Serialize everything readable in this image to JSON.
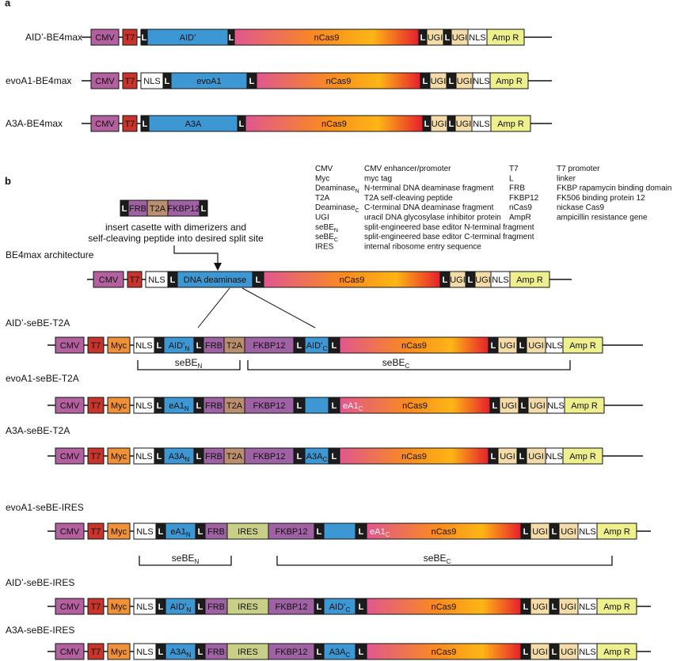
{
  "panel_a_label": "a",
  "panel_b_label": "b",
  "colors": {
    "CMV": "#b2609e",
    "T7": "#c8342c",
    "Myc": "#ee9138",
    "L": "#1c1c1c",
    "NLS": "#ffffff",
    "deaminase": "#3d97d3",
    "FRB": "#9e62a3",
    "T2A": "#b98f6f",
    "FKBP12": "#9e62a3",
    "IRES": "#c9cf86",
    "UGI": "#f4dca8",
    "AmpR": "#eef08d",
    "nCas9_gradient": [
      "#e0578e",
      "#f98a20",
      "#fdb515",
      "#e61f2d"
    ]
  },
  "constructs": [
    {
      "name": "AID’-BE4max",
      "segments": [
        {
          "type": "CMV",
          "text": "CMV"
        },
        {
          "type": "T7",
          "text": "T7"
        },
        {
          "type": "L",
          "text": "L"
        },
        {
          "type": "deaminase",
          "text": "AID’"
        },
        {
          "type": "L",
          "text": "L"
        },
        {
          "type": "nCas9",
          "text": "nCas9"
        },
        {
          "type": "L",
          "text": "L"
        },
        {
          "type": "UGI",
          "text": "UGI"
        },
        {
          "type": "L",
          "text": "L"
        },
        {
          "type": "UGI",
          "text": "UGI"
        },
        {
          "type": "NLS",
          "text": "NLS"
        },
        {
          "type": "AmpR",
          "text": "Amp R"
        }
      ]
    },
    {
      "name": "evoA1-BE4max",
      "segments": [
        {
          "type": "CMV",
          "text": "CMV"
        },
        {
          "type": "T7",
          "text": "T7"
        },
        {
          "type": "NLS",
          "text": "NLS"
        },
        {
          "type": "L",
          "text": "L"
        },
        {
          "type": "deaminase",
          "text": "evoA1"
        },
        {
          "type": "L",
          "text": "L"
        },
        {
          "type": "nCas9",
          "text": "nCas9"
        },
        {
          "type": "L",
          "text": "L"
        },
        {
          "type": "UGI",
          "text": "UGI"
        },
        {
          "type": "L",
          "text": "L"
        },
        {
          "type": "UGI",
          "text": "UGI"
        },
        {
          "type": "NLS",
          "text": "NLS"
        },
        {
          "type": "AmpR",
          "text": "Amp R"
        }
      ]
    },
    {
      "name": "A3A-BE4max",
      "segments": [
        {
          "type": "CMV",
          "text": "CMV"
        },
        {
          "type": "T7",
          "text": "T7"
        },
        {
          "type": "L",
          "text": "L"
        },
        {
          "type": "deaminase",
          "text": "A3A"
        },
        {
          "type": "L",
          "text": "L"
        },
        {
          "type": "nCas9",
          "text": "nCas9"
        },
        {
          "type": "L",
          "text": "L"
        },
        {
          "type": "UGI",
          "text": "UGI"
        },
        {
          "type": "L",
          "text": "L"
        },
        {
          "type": "UGI",
          "text": "UGI"
        },
        {
          "type": "NLS",
          "text": "NLS"
        },
        {
          "type": "AmpR",
          "text": "Amp R"
        }
      ]
    },
    {
      "name": "",
      "segments": [
        {
          "type": "L",
          "text": "L"
        },
        {
          "type": "FRB",
          "text": "FRB"
        },
        {
          "type": "T2A",
          "text": "T2A"
        },
        {
          "type": "FKBP12",
          "text": "FKBP12"
        },
        {
          "type": "L",
          "text": "L"
        }
      ]
    },
    {
      "name": "BE4max architecture",
      "segments": [
        {
          "type": "CMV",
          "text": "CMV"
        },
        {
          "type": "T7",
          "text": "T7"
        },
        {
          "type": "NLS",
          "text": "NLS"
        },
        {
          "type": "L",
          "text": "L"
        },
        {
          "type": "deaminase",
          "text": "DNA deaminase"
        },
        {
          "type": "L",
          "text": "L"
        },
        {
          "type": "nCas9",
          "text": "nCas9"
        },
        {
          "type": "L",
          "text": "L"
        },
        {
          "type": "UGI",
          "text": "UGI"
        },
        {
          "type": "L",
          "text": "L"
        },
        {
          "type": "UGI",
          "text": "UGI"
        },
        {
          "type": "NLS",
          "text": "NLS"
        },
        {
          "type": "AmpR",
          "text": "Amp R"
        }
      ]
    },
    {
      "name": "AID’-seBE-T2A",
      "segments": [
        {
          "type": "CMV",
          "text": "CMV"
        },
        {
          "type": "T7",
          "text": "T7"
        },
        {
          "type": "Myc",
          "text": "Myc"
        },
        {
          "type": "NLS",
          "text": "NLS"
        },
        {
          "type": "L",
          "text": "L"
        },
        {
          "type": "deaminase",
          "text": "AID’",
          "sub": "N"
        },
        {
          "type": "L",
          "text": "L"
        },
        {
          "type": "FRB",
          "text": "FRB"
        },
        {
          "type": "T2A",
          "text": "T2A"
        },
        {
          "type": "FKBP12",
          "text": "FKBP12"
        },
        {
          "type": "L",
          "text": "L"
        },
        {
          "type": "deaminase",
          "text": "AID’",
          "sub": "C"
        },
        {
          "type": "L",
          "text": "L"
        },
        {
          "type": "nCas9",
          "text": "nCas9"
        },
        {
          "type": "L",
          "text": "L"
        },
        {
          "type": "UGI",
          "text": "UGI"
        },
        {
          "type": "L",
          "text": "L"
        },
        {
          "type": "UGI",
          "text": "UGI"
        },
        {
          "type": "NLS",
          "text": "NLS"
        },
        {
          "type": "AmpR",
          "text": "Amp R"
        }
      ]
    },
    {
      "name": "evoA1-seBE-T2A",
      "segments": [
        {
          "type": "CMV",
          "text": "CMV"
        },
        {
          "type": "T7",
          "text": "T7"
        },
        {
          "type": "Myc",
          "text": "Myc"
        },
        {
          "type": "NLS",
          "text": "NLS"
        },
        {
          "type": "L",
          "text": "L"
        },
        {
          "type": "deaminase",
          "text": "eA1",
          "sub": "N"
        },
        {
          "type": "L",
          "text": "L"
        },
        {
          "type": "FRB",
          "text": "FRB"
        },
        {
          "type": "T2A",
          "text": "T2A"
        },
        {
          "type": "FKBP12",
          "text": "FKBP12"
        },
        {
          "type": "L",
          "text": "L"
        },
        {
          "type": "deaminase",
          "text": ""
        },
        {
          "type": "L",
          "text": "L"
        },
        {
          "type": "nCas9",
          "text": "nCas9",
          "pre": "eA1",
          "presub": "C"
        },
        {
          "type": "L",
          "text": "L"
        },
        {
          "type": "UGI",
          "text": "UGI"
        },
        {
          "type": "L",
          "text": "L"
        },
        {
          "type": "UGI",
          "text": "UGI"
        },
        {
          "type": "NLS",
          "text": "NLS"
        },
        {
          "type": "AmpR",
          "text": "Amp R"
        }
      ]
    },
    {
      "name": "A3A-seBE-T2A",
      "segments": [
        {
          "type": "CMV",
          "text": "CMV"
        },
        {
          "type": "T7",
          "text": "T7"
        },
        {
          "type": "Myc",
          "text": "Myc"
        },
        {
          "type": "NLS",
          "text": "NLS"
        },
        {
          "type": "L",
          "text": "L"
        },
        {
          "type": "deaminase",
          "text": "A3A",
          "sub": "N"
        },
        {
          "type": "L",
          "text": "L"
        },
        {
          "type": "FRB",
          "text": "FRB"
        },
        {
          "type": "T2A",
          "text": "T2A"
        },
        {
          "type": "FKBP12",
          "text": "FKBP12"
        },
        {
          "type": "L",
          "text": "L"
        },
        {
          "type": "deaminase",
          "text": "A3A",
          "sub": "C"
        },
        {
          "type": "L",
          "text": "L"
        },
        {
          "type": "nCas9",
          "text": "nCas9"
        },
        {
          "type": "L",
          "text": "L"
        },
        {
          "type": "UGI",
          "text": "UGI"
        },
        {
          "type": "L",
          "text": "L"
        },
        {
          "type": "UGI",
          "text": "UGI"
        },
        {
          "type": "NLS",
          "text": "NLS"
        },
        {
          "type": "AmpR",
          "text": "Amp R"
        }
      ]
    },
    {
      "name": "evoA1-seBE-IRES",
      "segments": [
        {
          "type": "CMV",
          "text": "CMV"
        },
        {
          "type": "T7",
          "text": "T7"
        },
        {
          "type": "Myc",
          "text": "Myc"
        },
        {
          "type": "NLS",
          "text": "NLS"
        },
        {
          "type": "L",
          "text": "L"
        },
        {
          "type": "deaminase",
          "text": "eA1",
          "sub": "N"
        },
        {
          "type": "L",
          "text": "L"
        },
        {
          "type": "FRB",
          "text": "FRB"
        },
        {
          "type": "IRES",
          "text": "IRES"
        },
        {
          "type": "FKBP12",
          "text": "FKBP12"
        },
        {
          "type": "L",
          "text": "L"
        },
        {
          "type": "deaminase",
          "text": ""
        },
        {
          "type": "L",
          "text": "L"
        },
        {
          "type": "nCas9",
          "text": "nCas9",
          "pre": "eA1",
          "presub": "C"
        },
        {
          "type": "L",
          "text": "L"
        },
        {
          "type": "UGI",
          "text": "UGI"
        },
        {
          "type": "L",
          "text": "L"
        },
        {
          "type": "UGI",
          "text": "UGI"
        },
        {
          "type": "NLS",
          "text": "NLS"
        },
        {
          "type": "AmpR",
          "text": "Amp R"
        }
      ]
    },
    {
      "name": "AID’-seBE-IRES",
      "segments": [
        {
          "type": "CMV",
          "text": "CMV"
        },
        {
          "type": "T7",
          "text": "T7"
        },
        {
          "type": "Myc",
          "text": "Myc"
        },
        {
          "type": "NLS",
          "text": "NLS"
        },
        {
          "type": "L",
          "text": "L"
        },
        {
          "type": "deaminase",
          "text": "AID’",
          "sub": "N"
        },
        {
          "type": "L",
          "text": "L"
        },
        {
          "type": "FRB",
          "text": "FRB"
        },
        {
          "type": "IRES",
          "text": "IRES"
        },
        {
          "type": "FKBP12",
          "text": "FKBP12"
        },
        {
          "type": "L",
          "text": "L"
        },
        {
          "type": "deaminase",
          "text": "AID’",
          "sub": "C"
        },
        {
          "type": "L",
          "text": "L"
        },
        {
          "type": "nCas9",
          "text": "nCas9"
        },
        {
          "type": "L",
          "text": "L"
        },
        {
          "type": "UGI",
          "text": "UGI"
        },
        {
          "type": "L",
          "text": "L"
        },
        {
          "type": "UGI",
          "text": "UGI"
        },
        {
          "type": "NLS",
          "text": "NLS"
        },
        {
          "type": "AmpR",
          "text": "Amp R"
        }
      ]
    },
    {
      "name": "A3A-seBE-IRES",
      "segments": [
        {
          "type": "CMV",
          "text": "CMV"
        },
        {
          "type": "T7",
          "text": "T7"
        },
        {
          "type": "Myc",
          "text": "Myc"
        },
        {
          "type": "NLS",
          "text": "NLS"
        },
        {
          "type": "L",
          "text": "L"
        },
        {
          "type": "deaminase",
          "text": "A3A",
          "sub": "N"
        },
        {
          "type": "L",
          "text": "L"
        },
        {
          "type": "FRB",
          "text": "FRB"
        },
        {
          "type": "IRES",
          "text": "IRES"
        },
        {
          "type": "FKBP12",
          "text": "FKBP12"
        },
        {
          "type": "L",
          "text": "L"
        },
        {
          "type": "deaminase",
          "text": "A3A",
          "sub": "C"
        },
        {
          "type": "L",
          "text": "L"
        },
        {
          "type": "nCas9",
          "text": "nCas9"
        },
        {
          "type": "L",
          "text": "L"
        },
        {
          "type": "UGI",
          "text": "UGI"
        },
        {
          "type": "L",
          "text": "L"
        },
        {
          "type": "UGI",
          "text": "UGI"
        },
        {
          "type": "NLS",
          "text": "NLS"
        },
        {
          "type": "AmpR",
          "text": "Amp R"
        }
      ]
    }
  ],
  "insert_note": [
    "insert casette with dimerizers and",
    "self-cleaving peptide into desired split site"
  ],
  "brackets": [
    {
      "text": "seBE",
      "sub": "N"
    },
    {
      "text": "seBE",
      "sub": "C"
    },
    {
      "text": "seBE",
      "sub": "N"
    },
    {
      "text": "seBE",
      "sub": "C"
    }
  ],
  "legend": [
    {
      "abbr": "CMV",
      "sub": "",
      "desc": "CMV enhancer/promoter"
    },
    {
      "abbr": "Myc",
      "sub": "",
      "desc": "myc tag"
    },
    {
      "abbr": "Deaminase",
      "sub": "N",
      "desc": "N-terminal DNA deaminase fragment"
    },
    {
      "abbr": "T2A",
      "sub": "",
      "desc": "T2A self-cleaving peptide"
    },
    {
      "abbr": "Deaminase",
      "sub": "C",
      "desc": "C-terminal DNA deaminase fragment"
    },
    {
      "abbr": "UGI",
      "sub": "",
      "desc": "uracil DNA glycosylase inhibitor protein"
    },
    {
      "abbr": "seBE",
      "sub": "N",
      "desc": "split-engineered base editor N-terminal fragment"
    },
    {
      "abbr": "seBE",
      "sub": "C",
      "desc": "split-engineered base editor C-terminal fragment"
    },
    {
      "abbr": "IRES",
      "sub": "",
      "desc": "internal ribosome entry sequence"
    },
    {
      "abbr": "T7",
      "sub": "",
      "desc": "T7 promoter"
    },
    {
      "abbr": "L",
      "sub": "",
      "desc": "linker"
    },
    {
      "abbr": "FRB",
      "sub": "",
      "desc": "FKBP rapamycin binding domain"
    },
    {
      "abbr": "FKBP12",
      "sub": "",
      "desc": "FK506 binding protein 12"
    },
    {
      "abbr": "nCas9",
      "sub": "",
      "desc": "nickase Cas9"
    },
    {
      "abbr": "AmpR",
      "sub": "",
      "desc": "ampicillin resistance gene"
    }
  ]
}
